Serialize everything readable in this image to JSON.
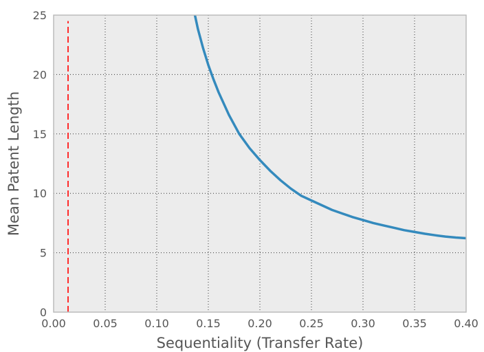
{
  "chart_data": {
    "type": "line",
    "title": "",
    "xlabel": "Sequentiality (Transfer Rate)",
    "ylabel": "Mean Patent Length",
    "xlim": [
      0.0,
      0.4
    ],
    "ylim": [
      0,
      25
    ],
    "xticks": [
      "0.00",
      "0.05",
      "0.10",
      "0.15",
      "0.20",
      "0.25",
      "0.30",
      "0.35",
      "0.40"
    ],
    "yticks": [
      "0",
      "5",
      "10",
      "15",
      "20",
      "25"
    ],
    "grid": true,
    "legend": "none",
    "series": [
      {
        "style": "solid",
        "color": "#348abd",
        "x": [
          0.137,
          0.14,
          0.145,
          0.15,
          0.155,
          0.16,
          0.17,
          0.18,
          0.19,
          0.2,
          0.21,
          0.22,
          0.23,
          0.24,
          0.25,
          0.26,
          0.27,
          0.28,
          0.29,
          0.3,
          0.31,
          0.32,
          0.33,
          0.34,
          0.35,
          0.36,
          0.37,
          0.38,
          0.39,
          0.4
        ],
        "y": [
          25.0,
          23.8,
          22.2,
          20.8,
          19.6,
          18.5,
          16.6,
          15.0,
          13.8,
          12.8,
          11.9,
          11.1,
          10.4,
          9.8,
          9.4,
          9.0,
          8.6,
          8.3,
          8.0,
          7.75,
          7.5,
          7.3,
          7.1,
          6.9,
          6.75,
          6.6,
          6.47,
          6.36,
          6.28,
          6.22
        ]
      },
      {
        "style": "dashed",
        "color": "#ff2a2a",
        "x": [
          0.014,
          0.014
        ],
        "y": [
          0,
          24.5
        ]
      }
    ]
  },
  "colors": {
    "plot_background": "#ececec",
    "grid": "#333333",
    "axis_frame": "#bcbcbc",
    "text": "#555555"
  }
}
